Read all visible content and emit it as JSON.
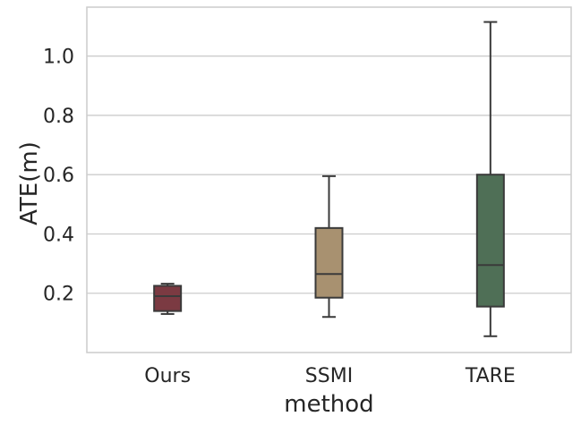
{
  "chart_data": {
    "type": "box",
    "xlabel": "method",
    "ylabel": "ATE(m)",
    "ylim": [
      0.0,
      1.165
    ],
    "yticks": [
      0.2,
      0.4,
      0.6,
      0.8,
      1.0
    ],
    "ytick_labels": [
      "0.2",
      "0.4",
      "0.6",
      "0.8",
      "1.0"
    ],
    "grid": "horizontal",
    "categories": [
      "Ours",
      "SSMI",
      "TARE"
    ],
    "boxes": [
      {
        "name": "Ours",
        "whisker_low": 0.13,
        "q1": 0.14,
        "median": 0.19,
        "q3": 0.225,
        "whisker_high": 0.232,
        "color": "#7b3a42"
      },
      {
        "name": "SSMI",
        "whisker_low": 0.12,
        "q1": 0.185,
        "median": 0.265,
        "q3": 0.42,
        "whisker_high": 0.595,
        "color": "#a89170"
      },
      {
        "name": "TARE",
        "whisker_low": 0.055,
        "q1": 0.155,
        "median": 0.295,
        "q3": 0.6,
        "whisker_high": 1.115,
        "color": "#4f6f56"
      }
    ],
    "colors": {
      "grid": "#cccccc",
      "frame": "#cccccc",
      "line": "#3a3a3a"
    }
  }
}
